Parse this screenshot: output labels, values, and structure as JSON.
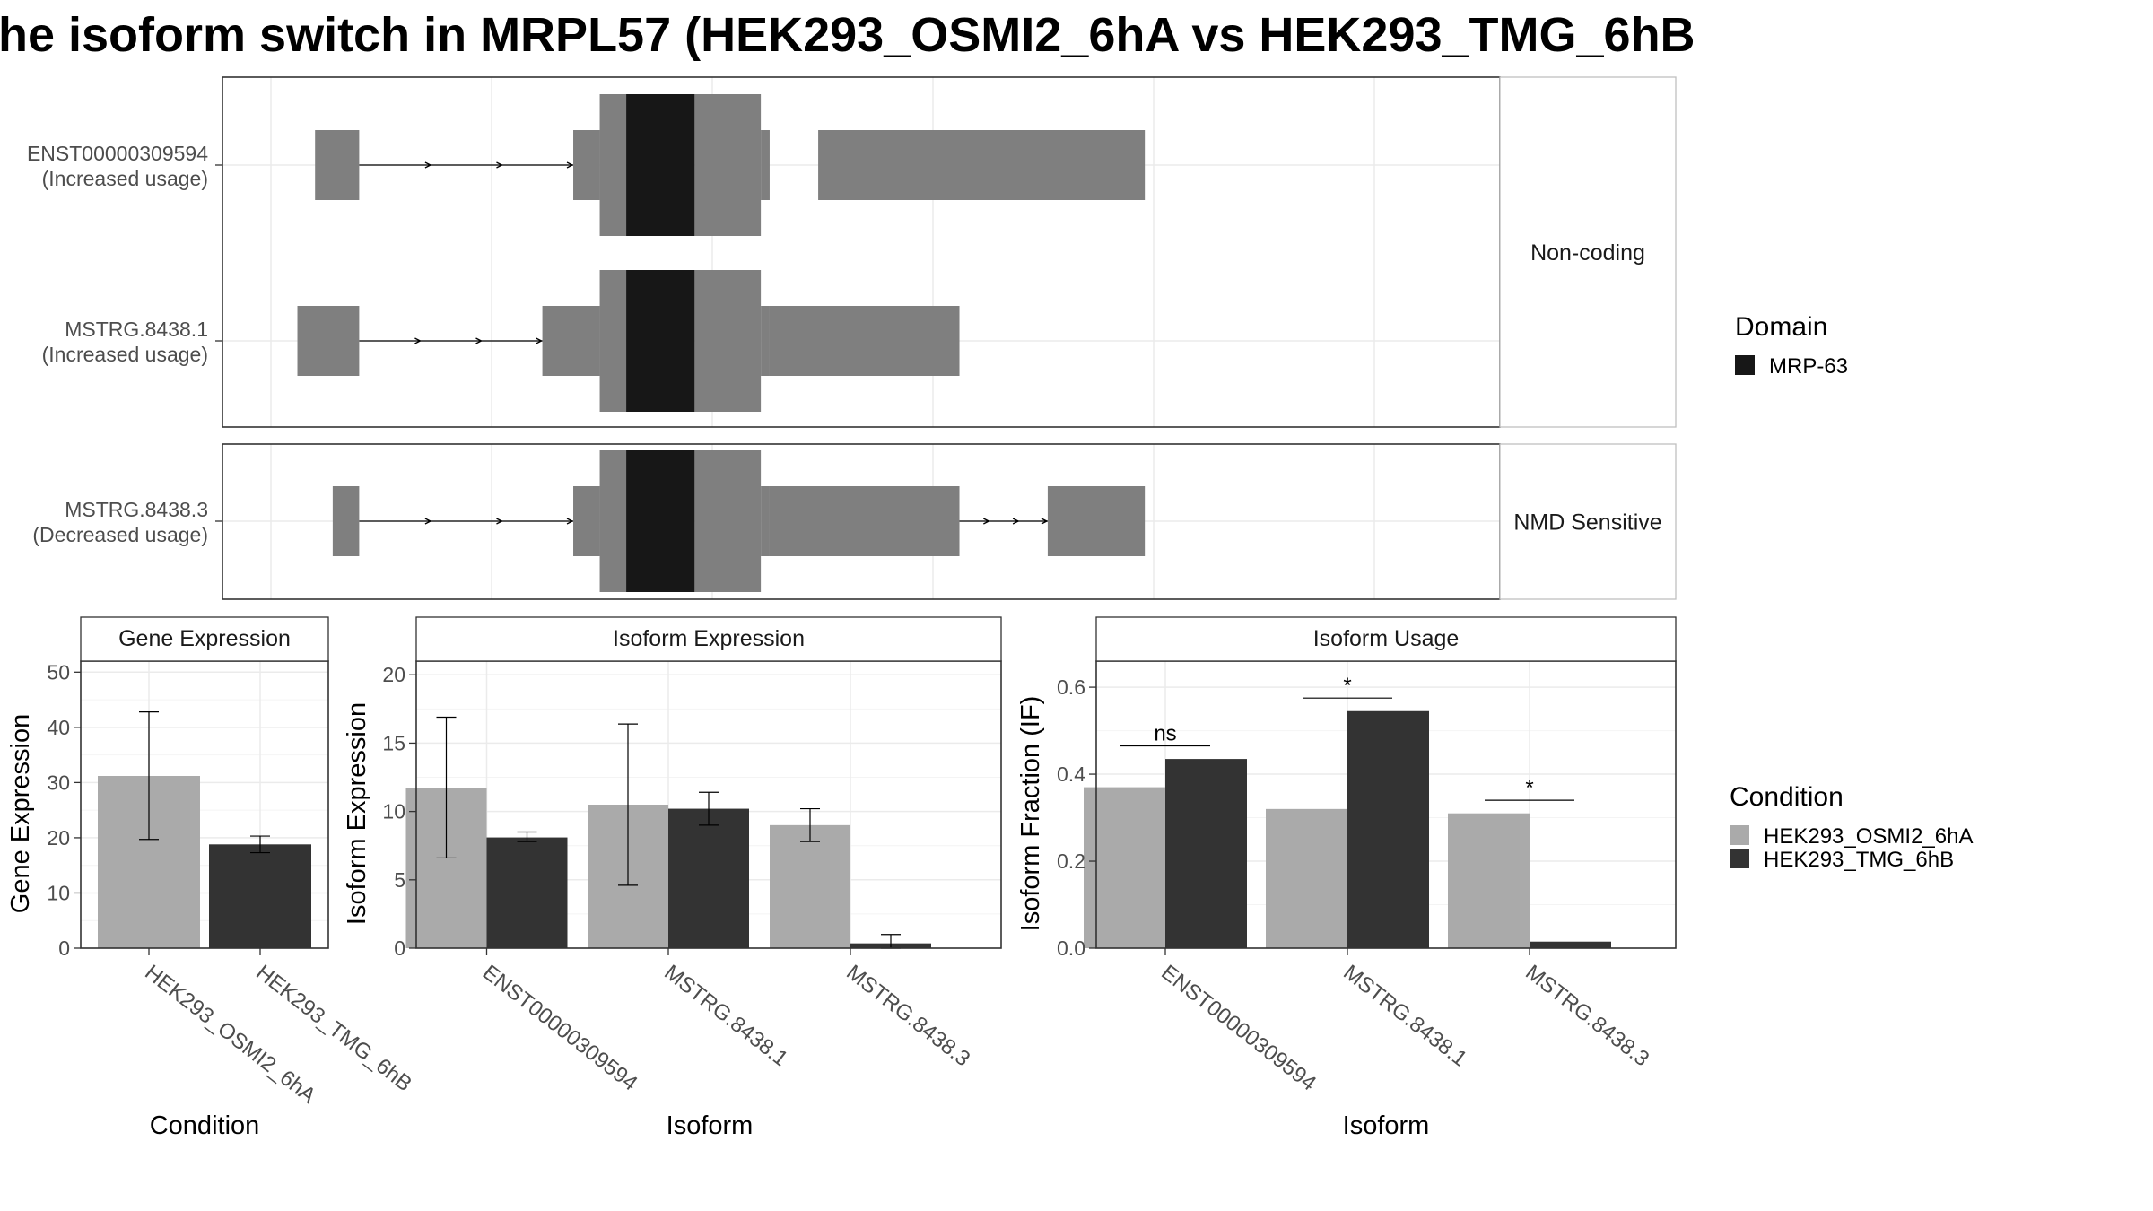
{
  "title": "he isoform switch in MRPL57 (HEK293_OSMI2_6hA vs HEK293_TMG_6hB",
  "colors": {
    "exon": "#7f7f7f",
    "domain": "#171717",
    "cond_a": "#aaaaaa",
    "cond_b": "#333333",
    "grid": "#ebebeb",
    "panel_border": "#333333",
    "strip_border": "#bfbfbf"
  },
  "structure": {
    "x_range": [
      0,
      100
    ],
    "facets": [
      {
        "label": "Non-coding",
        "transcripts": [
          {
            "name": "ENST00000309594",
            "usage": "(Increased usage)",
            "utr_exons": [
              [
                10,
                20
              ],
              [
                68.5,
                74.5
              ],
              [
                111,
                113
              ],
              [
                124,
                198
              ]
            ],
            "cds_exons": [
              [
                74.5,
                80.5
              ],
              [
                96,
                111
              ]
            ],
            "domains": [
              [
                80.5,
                96
              ]
            ],
            "introns": [
              [
                20,
                68.5
              ]
            ]
          },
          {
            "name": "MSTRG.8438.1",
            "usage": "(Increased usage)",
            "utr_exons": [
              [
                6,
                20
              ],
              [
                61.5,
                74.5
              ],
              [
                111,
                113
              ],
              [
                113,
                156
              ]
            ],
            "cds_exons": [
              [
                74.5,
                80.5
              ],
              [
                96,
                111
              ]
            ],
            "domains": [
              [
                80.5,
                96
              ]
            ],
            "introns": [
              [
                20,
                61.5
              ]
            ]
          }
        ]
      },
      {
        "label": "NMD Sensitive",
        "transcripts": [
          {
            "name": "MSTRG.8438.3",
            "usage": "(Decreased usage)",
            "utr_exons": [
              [
                14,
                20
              ],
              [
                68.5,
                74.5
              ],
              [
                111,
                113
              ],
              [
                113,
                156
              ],
              [
                176,
                198
              ]
            ],
            "cds_exons": [
              [
                74.5,
                80.5
              ],
              [
                96,
                111
              ]
            ],
            "domains": [
              [
                80.5,
                96
              ]
            ],
            "introns": [
              [
                20,
                68.5
              ],
              [
                156,
                176
              ]
            ]
          }
        ]
      }
    ],
    "domain_legend": {
      "title": "Domain",
      "items": [
        {
          "label": "MRP-63",
          "color": "#171717"
        }
      ]
    }
  },
  "chart_data": [
    {
      "type": "bar",
      "title": "Gene Expression",
      "xlabel": "Condition",
      "ylabel": "Gene Expression",
      "ylim": [
        0,
        52
      ],
      "yticks": [
        0,
        10,
        20,
        30,
        40,
        50
      ],
      "categories": [
        "HEK293_OSMI2_6hA",
        "HEK293_TMG_6hB"
      ],
      "values": [
        31.2,
        18.8
      ],
      "errors": [
        [
          19.7,
          42.8
        ],
        [
          17.3,
          20.3
        ]
      ],
      "colors": [
        "#aaaaaa",
        "#333333"
      ]
    },
    {
      "type": "bar",
      "title": "Isoform Expression",
      "xlabel": "Isoform",
      "ylabel": "Isoform Expression",
      "ylim": [
        0,
        21
      ],
      "yticks": [
        0,
        5,
        10,
        15,
        20
      ],
      "categories": [
        "ENST00000309594",
        "MSTRG.8438.1",
        "MSTRG.8438.3"
      ],
      "series": [
        {
          "name": "HEK293_OSMI2_6hA",
          "values": [
            11.7,
            10.5,
            9.0
          ],
          "errors": [
            [
              6.6,
              16.9
            ],
            [
              4.6,
              16.4
            ],
            [
              7.8,
              10.2
            ]
          ]
        },
        {
          "name": "HEK293_TMG_6hB",
          "values": [
            8.1,
            10.2,
            0.35
          ],
          "errors": [
            [
              7.8,
              8.5
            ],
            [
              9.0,
              11.4
            ],
            [
              0.0,
              1.0
            ]
          ]
        }
      ]
    },
    {
      "type": "bar",
      "title": "Isoform Usage",
      "xlabel": "Isoform",
      "ylabel": "Isoform Fraction (IF)",
      "ylim": [
        0,
        0.66
      ],
      "yticks": [
        0.0,
        0.2,
        0.4,
        0.6
      ],
      "ytick_labels": [
        "0.0",
        "0.2",
        "0.4",
        "0.6"
      ],
      "categories": [
        "ENST00000309594",
        "MSTRG.8438.1",
        "MSTRG.8438.3"
      ],
      "series": [
        {
          "name": "HEK293_OSMI2_6hA",
          "values": [
            0.37,
            0.32,
            0.31
          ]
        },
        {
          "name": "HEK293_TMG_6hB",
          "values": [
            0.435,
            0.545,
            0.015
          ]
        }
      ],
      "annotations": [
        {
          "category": 0,
          "label": "ns",
          "y": 0.465
        },
        {
          "category": 1,
          "label": "*",
          "y": 0.575
        },
        {
          "category": 2,
          "label": "*",
          "y": 0.34
        }
      ]
    }
  ],
  "condition_legend": {
    "title": "Condition",
    "items": [
      {
        "label": "HEK293_OSMI2_6hA",
        "color": "#aaaaaa"
      },
      {
        "label": "HEK293_TMG_6hB",
        "color": "#333333"
      }
    ]
  }
}
